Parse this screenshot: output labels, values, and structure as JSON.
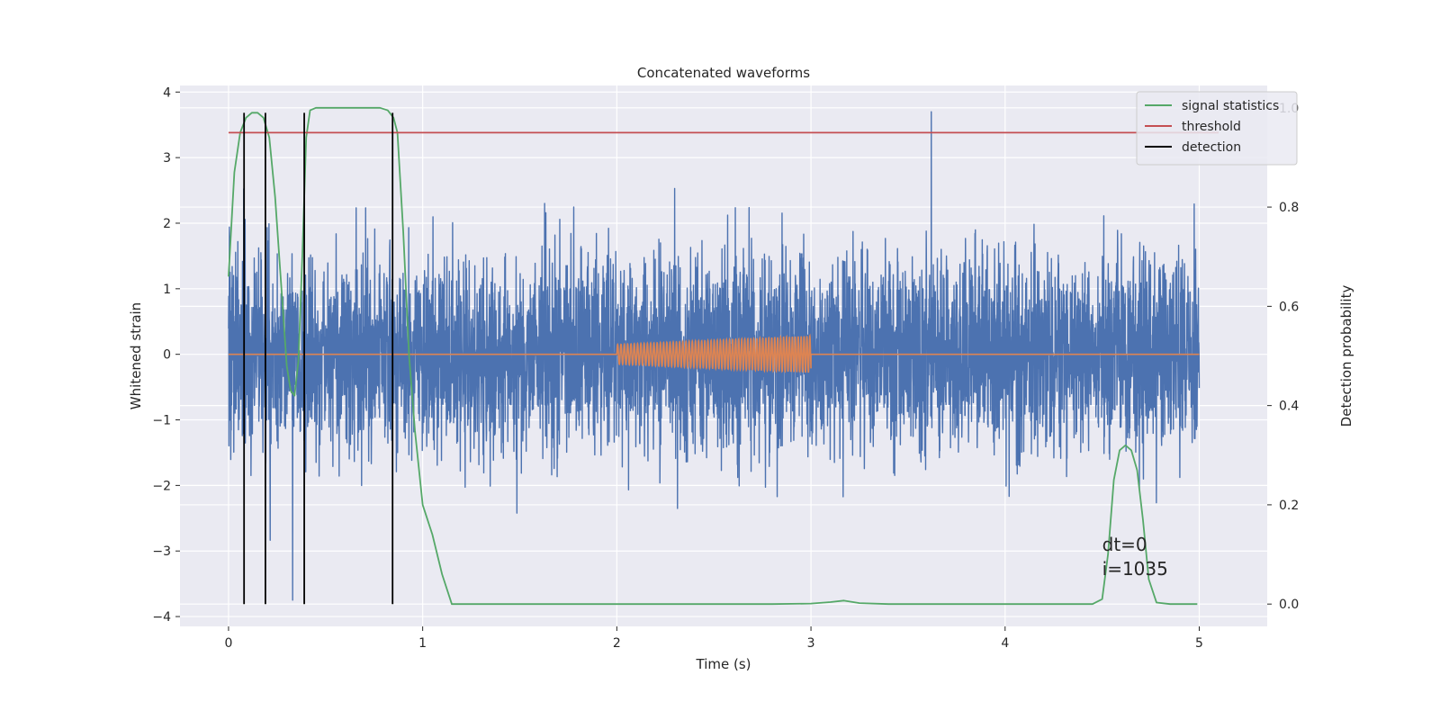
{
  "chart_data": {
    "type": "line",
    "title": "Concatenated waveforms",
    "xlabel": "Time (s)",
    "ylabel": "Whitened strain",
    "ylabel_right": "Detection probability",
    "xlim": [
      -0.25,
      5.35
    ],
    "ylim": [
      -4.15,
      4.1
    ],
    "ylim_right": [
      -0.045,
      1.045
    ],
    "xticks": [
      0,
      1,
      2,
      3,
      4,
      5
    ],
    "xtick_labels": [
      "0",
      "1",
      "2",
      "3",
      "4",
      "5"
    ],
    "yticks": [
      -4,
      -3,
      -2,
      -1,
      0,
      1,
      2,
      3,
      4
    ],
    "ytick_labels": [
      "−4",
      "−3",
      "−2",
      "−1",
      "0",
      "1",
      "2",
      "3",
      "4"
    ],
    "yticks_right": [
      0.0,
      0.2,
      0.4,
      0.6,
      0.8,
      1.0
    ],
    "ytick_labels_right": [
      "0.0",
      "0.2",
      "0.4",
      "0.6",
      "0.8",
      "1.0"
    ],
    "grid": true,
    "legend_position": "top-right",
    "series": [
      {
        "name": "",
        "kind": "noise",
        "axis": "left",
        "color": "#4c72b0",
        "x_range": [
          0,
          5
        ],
        "sigma": 0.75,
        "max": 3.7,
        "min": -3.75,
        "max_at": 3.62,
        "min_at": 0.33
      },
      {
        "name": "",
        "kind": "chirp",
        "axis": "left",
        "color": "#dd8452",
        "baseline": 0,
        "x_range": [
          0,
          5
        ],
        "chirp_start": 2.0,
        "chirp_end": 3.0,
        "amp_start": 0.15,
        "amp_end": 0.28,
        "cycles": 58
      },
      {
        "name": "signal statistics",
        "axis": "right",
        "color": "#55a868",
        "x": [
          0.0,
          0.03,
          0.06,
          0.09,
          0.12,
          0.15,
          0.18,
          0.21,
          0.24,
          0.27,
          0.3,
          0.32,
          0.34,
          0.36,
          0.38,
          0.4,
          0.42,
          0.45,
          0.5,
          0.6,
          0.7,
          0.78,
          0.82,
          0.85,
          0.87,
          0.9,
          0.93,
          0.96,
          1.0,
          1.05,
          1.1,
          1.15,
          1.2,
          2.0,
          2.8,
          3.0,
          3.1,
          3.17,
          3.25,
          3.4,
          4.0,
          4.45,
          4.5,
          4.53,
          4.56,
          4.59,
          4.62,
          4.65,
          4.68,
          4.71,
          4.74,
          4.78,
          4.85,
          4.99
        ],
        "y": [
          0.66,
          0.87,
          0.95,
          0.98,
          0.99,
          0.99,
          0.98,
          0.94,
          0.82,
          0.65,
          0.48,
          0.43,
          0.42,
          0.49,
          0.7,
          0.94,
          0.995,
          1.0,
          1.0,
          1.0,
          1.0,
          1.0,
          0.995,
          0.98,
          0.95,
          0.75,
          0.5,
          0.35,
          0.2,
          0.14,
          0.06,
          0.0,
          0.0,
          0.0,
          0.0,
          0.001,
          0.004,
          0.007,
          0.002,
          0.0,
          0.0,
          0.0,
          0.01,
          0.1,
          0.25,
          0.31,
          0.32,
          0.31,
          0.27,
          0.17,
          0.05,
          0.003,
          0.0,
          0.0
        ]
      },
      {
        "name": "threshold",
        "axis": "right",
        "color": "#c44e52",
        "x": [
          0,
          5.1
        ],
        "y": [
          0.95,
          0.95
        ]
      },
      {
        "name": "detection",
        "axis": "right",
        "color": "#000000",
        "kind": "vlines",
        "x": [
          0.08,
          0.19,
          0.39,
          0.845
        ],
        "ymin": 0.0,
        "ymax": 0.99
      }
    ],
    "annotations": [
      {
        "text": "dt=0",
        "x": 4.5,
        "y": -3.0
      },
      {
        "text": "i=1035",
        "x": 4.5,
        "y": -3.37
      }
    ]
  }
}
